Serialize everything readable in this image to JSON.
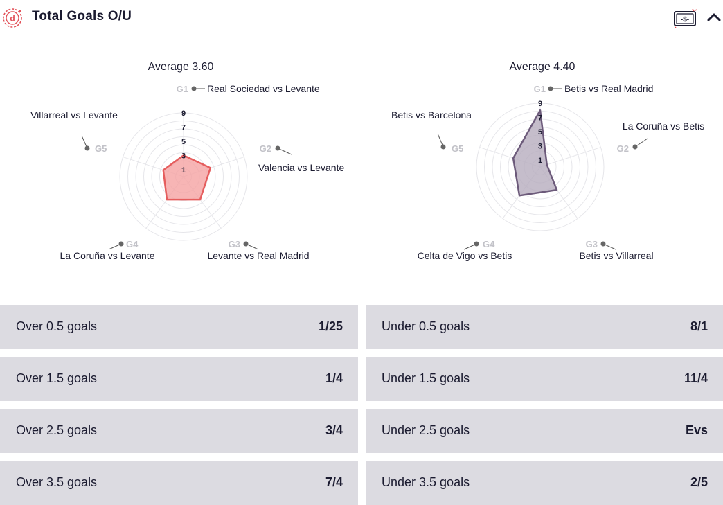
{
  "header": {
    "title": "Total Goals O/U",
    "logo_icon": "d-logo-icon",
    "bet_icon": "money-ticket-icon",
    "collapse_icon": "chevron-up-icon",
    "brand_color": "#e2525a"
  },
  "charts": [
    {
      "average_label": "Average 3.60",
      "fill": "#f5a3a3",
      "stroke": "#e55d5d",
      "games": [
        {
          "id": "G1",
          "match": "Real Sociedad vs Levante",
          "goals": 3
        },
        {
          "id": "G2",
          "match": "Valencia vs Levante",
          "goals": 4
        },
        {
          "id": "G3",
          "match": "Levante vs Real Madrid",
          "goals": 4
        },
        {
          "id": "G4",
          "match": "La Coruña vs Levante",
          "goals": 4
        },
        {
          "id": "G5",
          "match": "Villarreal vs Levante",
          "goals": 3
        }
      ]
    },
    {
      "average_label": "Average 4.40",
      "fill": "#b7adbe",
      "stroke": "#6c5a7a",
      "games": [
        {
          "id": "G1",
          "match": "Betis vs Real Madrid",
          "goals": 8
        },
        {
          "id": "G2",
          "match": "La Coruña vs Betis",
          "goals": 1
        },
        {
          "id": "G3",
          "match": "Betis vs Villarreal",
          "goals": 4
        },
        {
          "id": "G4",
          "match": "Celta de Vigo vs Betis",
          "goals": 5
        },
        {
          "id": "G5",
          "match": "Betis vs Barcelona",
          "goals": 4
        }
      ]
    }
  ],
  "chart_data": [
    {
      "type": "radar",
      "title": "Average 3.60",
      "categories": [
        "G1",
        "G2",
        "G3",
        "G4",
        "G5"
      ],
      "values": [
        3,
        4,
        4,
        4,
        3
      ],
      "scale_ticks": [
        1,
        3,
        5,
        7,
        9
      ],
      "range": [
        0,
        9
      ]
    },
    {
      "type": "radar",
      "title": "Average 4.40",
      "categories": [
        "G1",
        "G2",
        "G3",
        "G4",
        "G5"
      ],
      "values": [
        8,
        1,
        4,
        5,
        4
      ],
      "scale_ticks": [
        1,
        3,
        5,
        7,
        9
      ],
      "range": [
        0,
        9
      ]
    }
  ],
  "odds": {
    "over": [
      {
        "label": "Over 0.5 goals",
        "value": "1/25"
      },
      {
        "label": "Over 1.5 goals",
        "value": "1/4"
      },
      {
        "label": "Over 2.5 goals",
        "value": "3/4"
      },
      {
        "label": "Over 3.5 goals",
        "value": "7/4"
      }
    ],
    "under": [
      {
        "label": "Under 0.5 goals",
        "value": "8/1"
      },
      {
        "label": "Under 1.5 goals",
        "value": "11/4"
      },
      {
        "label": "Under 2.5 goals",
        "value": "Evs"
      },
      {
        "label": "Under 3.5 goals",
        "value": "2/5"
      }
    ]
  }
}
